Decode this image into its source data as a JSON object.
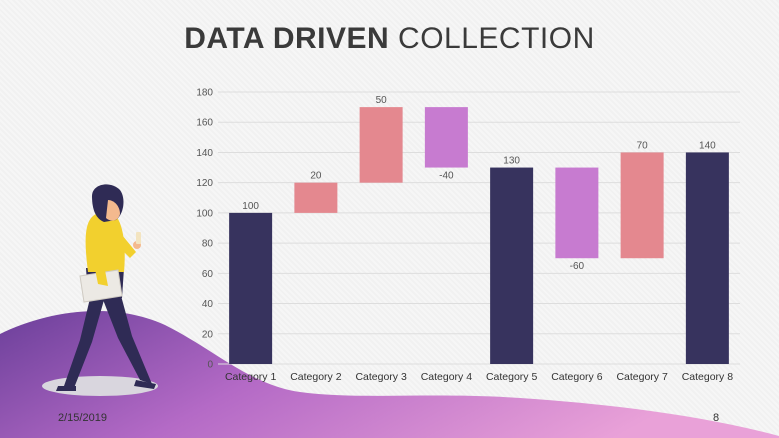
{
  "slide": {
    "title_bold": "DATA DRIVEN",
    "title_light": "COLLECTION",
    "date": "2/15/2019",
    "page_number": "8"
  },
  "colors": {
    "total": "#37335e",
    "increase": "#e4888f",
    "decrease": "#c77bd0",
    "wave_light": "#d98bd6",
    "wave_dark": "#6b3f9a",
    "gridline": "#dddddd"
  },
  "chart_data": {
    "type": "bar",
    "subtype": "waterfall",
    "categories": [
      "Category 1",
      "Category 2",
      "Category 3",
      "Category 4",
      "Category 5",
      "Category 6",
      "Category 7",
      "Category 8"
    ],
    "bars": [
      {
        "category": "Category 1",
        "kind": "total",
        "start": 0,
        "end": 100,
        "label": "100"
      },
      {
        "category": "Category 2",
        "kind": "increase",
        "start": 100,
        "end": 120,
        "label": "20"
      },
      {
        "category": "Category 3",
        "kind": "increase",
        "start": 120,
        "end": 170,
        "label": "50"
      },
      {
        "category": "Category 4",
        "kind": "decrease",
        "start": 170,
        "end": 130,
        "label": "-40"
      },
      {
        "category": "Category 5",
        "kind": "total",
        "start": 0,
        "end": 130,
        "label": "130"
      },
      {
        "category": "Category 6",
        "kind": "decrease",
        "start": 130,
        "end": 70,
        "label": "-60"
      },
      {
        "category": "Category 7",
        "kind": "increase",
        "start": 70,
        "end": 140,
        "label": "70"
      },
      {
        "category": "Category 8",
        "kind": "total",
        "start": 0,
        "end": 140,
        "label": "140"
      }
    ],
    "ylim": [
      0,
      180
    ],
    "yticks": [
      0,
      20,
      40,
      60,
      80,
      100,
      120,
      140,
      160,
      180
    ],
    "grid": true,
    "legend": "none"
  }
}
